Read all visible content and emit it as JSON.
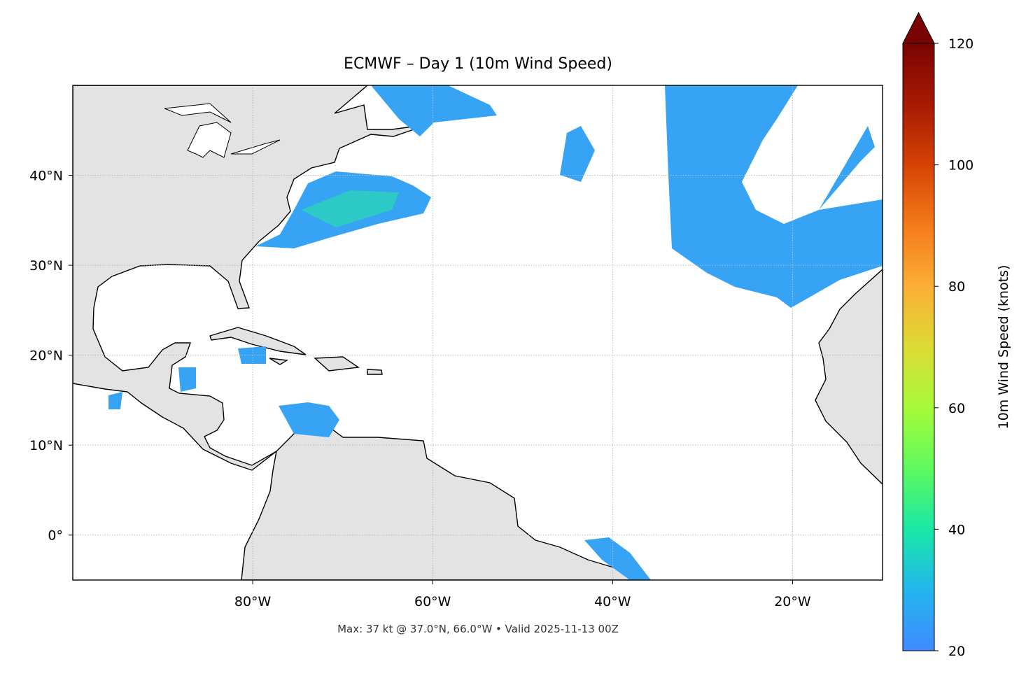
{
  "title": "ECMWF – Day 1 (10m Wind Speed)",
  "map": {
    "xlim": [
      -100,
      -10
    ],
    "ylim": [
      -5,
      50
    ],
    "xticks": [
      {
        "value": -80,
        "label": "80°W"
      },
      {
        "value": -60,
        "label": "60°W"
      },
      {
        "value": -40,
        "label": "40°W"
      },
      {
        "value": -20,
        "label": "20°W"
      }
    ],
    "yticks": [
      {
        "value": 0,
        "label": "0°"
      },
      {
        "value": 10,
        "label": "10°N"
      },
      {
        "value": 20,
        "label": "20°N"
      },
      {
        "value": 30,
        "label": "30°N"
      },
      {
        "value": 40,
        "label": "40°N"
      }
    ],
    "grid": true
  },
  "colorbar": {
    "label": "10m Wind Speed (knots)",
    "lim": [
      20,
      120
    ],
    "ticks": [
      20,
      40,
      60,
      80,
      100,
      120
    ],
    "extend": "max"
  },
  "footer": "Max: 37 kt @ 37.0°N, 66.0°W • Valid 2025-11-13 00Z"
}
